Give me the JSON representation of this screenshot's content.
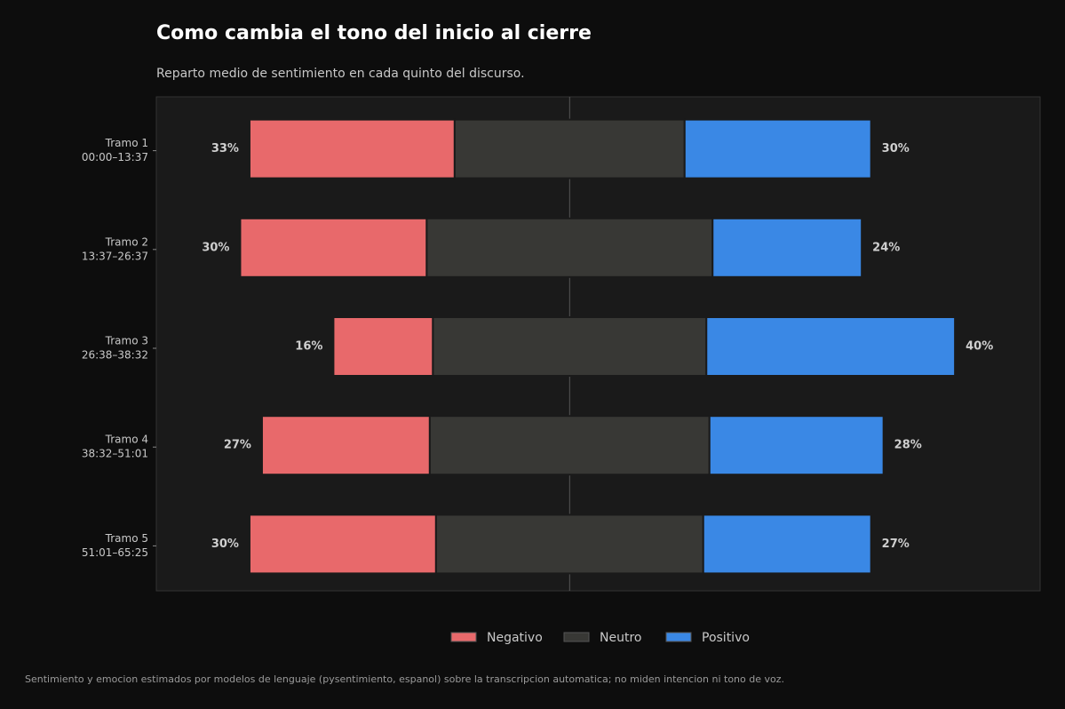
{
  "chart_data": {
    "type": "diverging_bar",
    "title": "Como cambia el tono del inicio al cierre",
    "subtitle": "Reparto medio de sentimiento en cada quinto del discurso.",
    "footnote": "Sentimiento y emocion estimados por modelos de lenguaje (pysentimiento, espanol) sobre la transcripcion automatica; no miden intencion ni tono de voz.",
    "categories": [
      [
        "Tramo 1",
        "00:00–13:37"
      ],
      [
        "Tramo 2",
        "13:37–26:37"
      ],
      [
        "Tramo 3",
        "26:38–38:32"
      ],
      [
        "Tramo 4",
        "38:32–51:01"
      ],
      [
        "Tramo 5",
        "51:01–65:25"
      ]
    ],
    "series": [
      {
        "name": "Negativo",
        "color": "#e8696b",
        "values": [
          33,
          30,
          16,
          27,
          30
        ],
        "value_labels": [
          "33%",
          "30%",
          "16%",
          "27%",
          "30%"
        ]
      },
      {
        "name": "Neutro",
        "color": "#383835",
        "values": [
          37,
          46,
          44,
          45,
          43
        ]
      },
      {
        "name": "Positivo",
        "color": "#3a88e5",
        "values": [
          30,
          24,
          40,
          28,
          27
        ],
        "value_labels": [
          "30%",
          "24%",
          "40%",
          "28%",
          "27%"
        ]
      }
    ],
    "xlim": [
      -66.5,
      75.7
    ],
    "legend": "bottom"
  }
}
